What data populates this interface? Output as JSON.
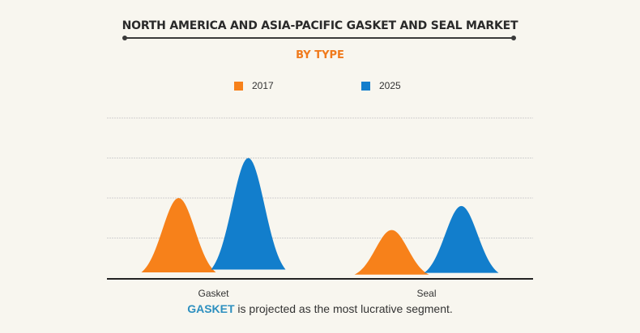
{
  "chart_data": {
    "type": "area",
    "title": "NORTH AMERICA AND ASIA-PACIFIC GASKET AND SEAL MARKET",
    "subtitle": "BY TYPE",
    "categories": [
      "Gasket",
      "Seal"
    ],
    "series": [
      {
        "name": "2017",
        "color": "#f7811a",
        "values": [
          40,
          24
        ]
      },
      {
        "name": "2025",
        "color": "#127ecc",
        "values": [
          60,
          36
        ]
      }
    ],
    "ylim": [
      0,
      80
    ],
    "grid": true,
    "y_tick_labels_shown": false,
    "legend_position": "top"
  },
  "caption": {
    "highlight": "GASKET",
    "text": " is projected as the most lucrative segment."
  },
  "colors": {
    "background": "#f8f6ef",
    "accent_orange": "#f07a1c",
    "accent_blue": "#2c8fbf",
    "grid": "#cfcfcf",
    "axis": "#222222"
  }
}
